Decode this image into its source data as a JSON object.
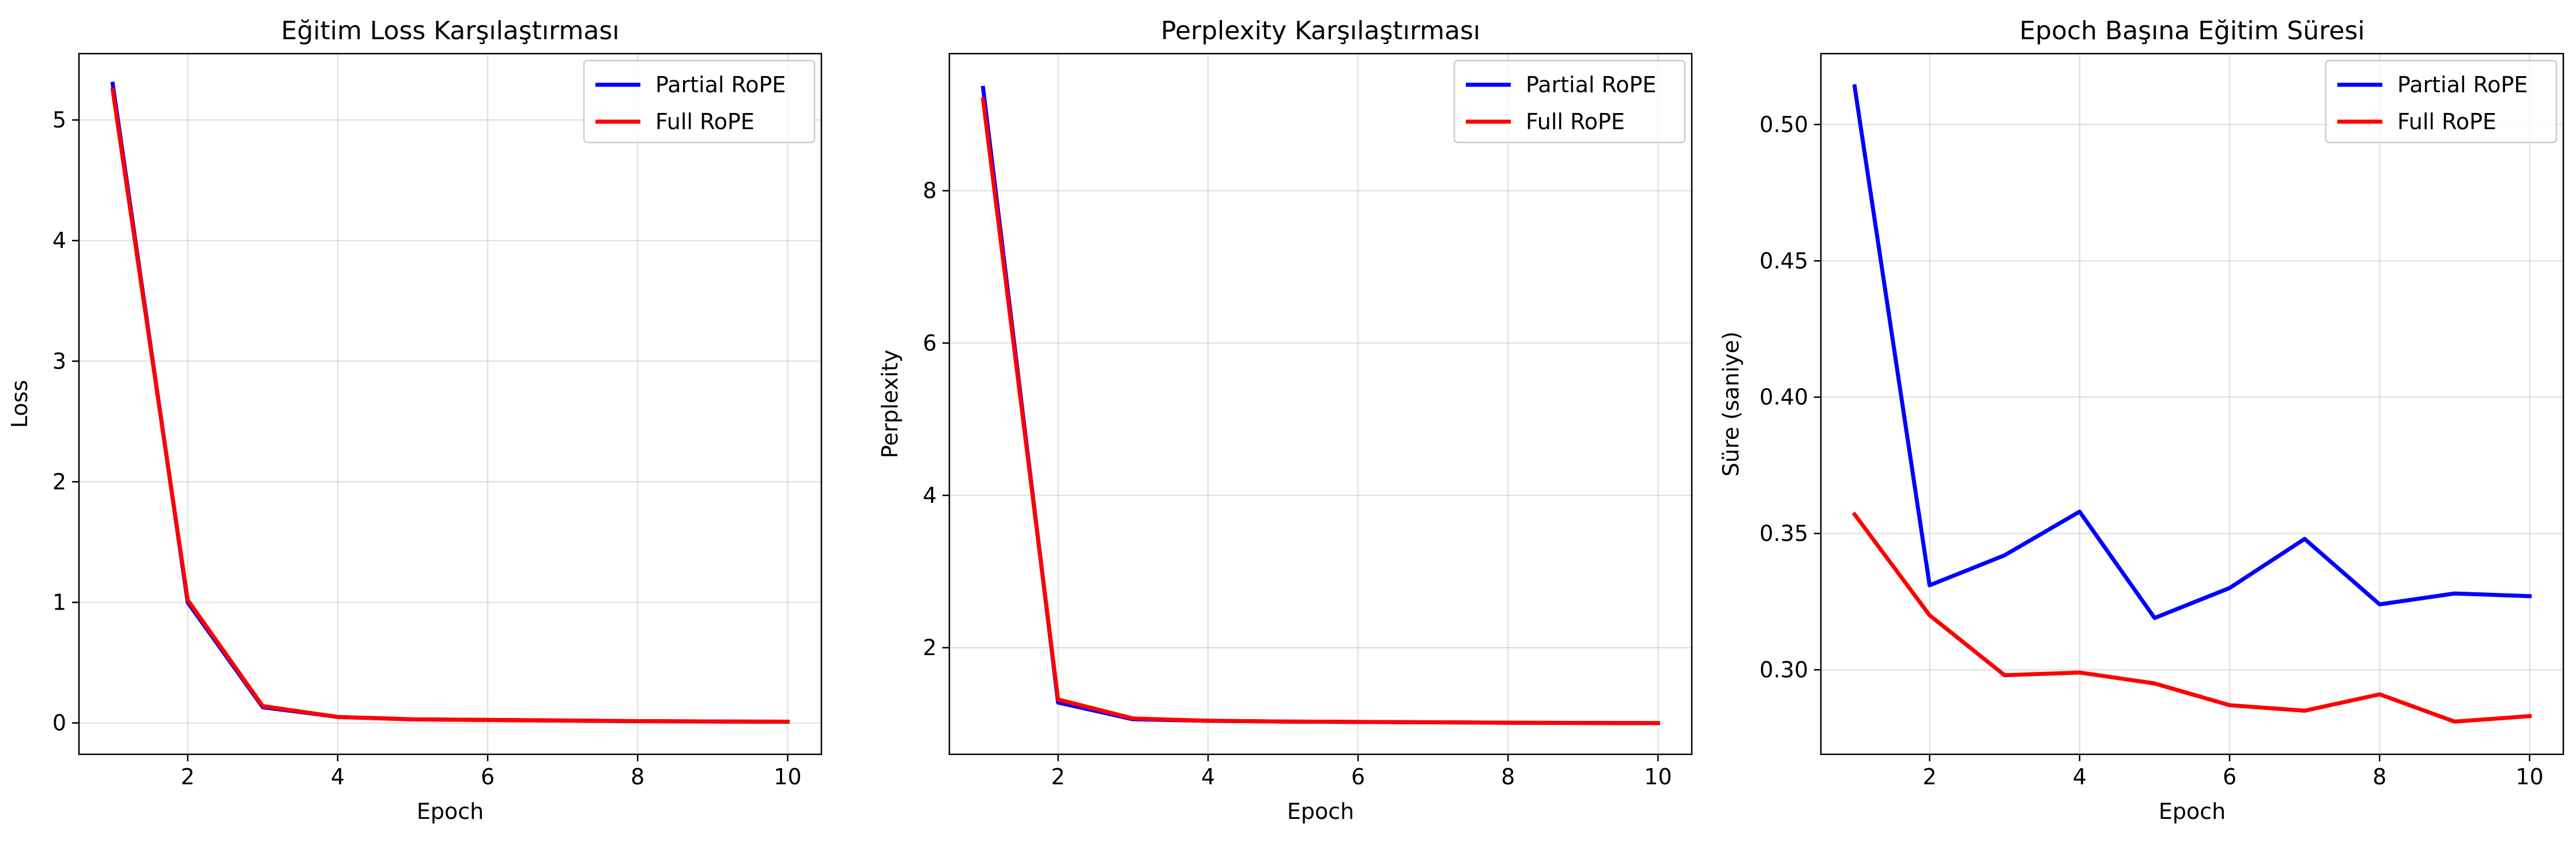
{
  "chart_data": [
    {
      "type": "line",
      "title": "Eğitim Loss Karşılaştırması",
      "xlabel": "Epoch",
      "ylabel": "Loss",
      "xlim": [
        0.55,
        10.45
      ],
      "ylim": [
        -0.26,
        5.55
      ],
      "xticks": [
        2,
        4,
        6,
        8,
        10
      ],
      "yticks": [
        0,
        1,
        2,
        3,
        4,
        5
      ],
      "grid": true,
      "legend_position": "top-right",
      "x": [
        1,
        2,
        3,
        4,
        5,
        6,
        7,
        8,
        9,
        10
      ],
      "series": [
        {
          "name": "Partial RoPE",
          "color": "#0000ff",
          "values": [
            5.3,
            1.0,
            0.13,
            0.05,
            0.03,
            0.025,
            0.02,
            0.015,
            0.012,
            0.01
          ]
        },
        {
          "name": "Full RoPE",
          "color": "#ff0000",
          "values": [
            5.25,
            1.02,
            0.14,
            0.05,
            0.03,
            0.025,
            0.02,
            0.015,
            0.012,
            0.01
          ]
        }
      ]
    },
    {
      "type": "line",
      "title": "Perplexity Karşılaştırması",
      "xlabel": "Epoch",
      "ylabel": "Perplexity",
      "xlim": [
        0.55,
        10.45
      ],
      "ylim": [
        0.6,
        9.8
      ],
      "xticks": [
        2,
        4,
        6,
        8,
        10
      ],
      "yticks": [
        2,
        4,
        6,
        8
      ],
      "grid": true,
      "legend_position": "top-right",
      "x": [
        1,
        2,
        3,
        4,
        5,
        6,
        7,
        8,
        9,
        10
      ],
      "series": [
        {
          "name": "Partial RoPE",
          "color": "#0000ff",
          "values": [
            9.35,
            1.28,
            1.06,
            1.04,
            1.03,
            1.025,
            1.02,
            1.015,
            1.012,
            1.01
          ]
        },
        {
          "name": "Full RoPE",
          "color": "#ff0000",
          "values": [
            9.2,
            1.32,
            1.07,
            1.04,
            1.03,
            1.025,
            1.02,
            1.015,
            1.012,
            1.01
          ]
        }
      ]
    },
    {
      "type": "line",
      "title": "Epoch Başına Eğitim Süresi",
      "xlabel": "Epoch",
      "ylabel": "Süre (saniye)",
      "xlim": [
        0.55,
        10.45
      ],
      "ylim": [
        0.269,
        0.526
      ],
      "xticks": [
        2,
        4,
        6,
        8,
        10
      ],
      "yticks": [
        0.3,
        0.35,
        0.4,
        0.45,
        0.5
      ],
      "yticklabels": [
        "0.30",
        "0.35",
        "0.40",
        "0.45",
        "0.50"
      ],
      "grid": true,
      "legend_position": "top-right",
      "x": [
        1,
        2,
        3,
        4,
        5,
        6,
        7,
        8,
        9,
        10
      ],
      "series": [
        {
          "name": "Partial RoPE",
          "color": "#0000ff",
          "values": [
            0.514,
            0.331,
            0.342,
            0.358,
            0.319,
            0.33,
            0.348,
            0.324,
            0.328,
            0.327
          ]
        },
        {
          "name": "Full RoPE",
          "color": "#ff0000",
          "values": [
            0.357,
            0.32,
            0.298,
            0.299,
            0.295,
            0.287,
            0.285,
            0.291,
            0.281,
            0.283
          ]
        }
      ]
    }
  ]
}
